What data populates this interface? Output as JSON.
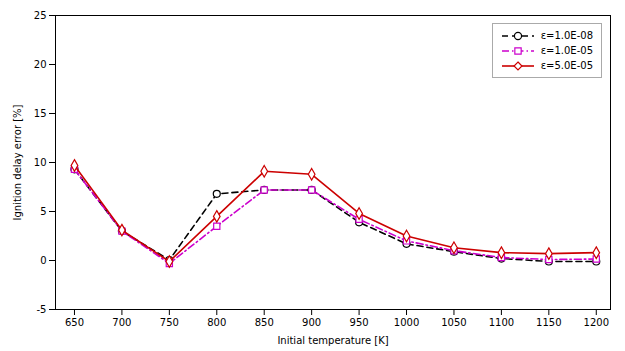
{
  "chart_data": {
    "type": "line",
    "x": [
      650,
      700,
      750,
      800,
      850,
      900,
      950,
      1000,
      1050,
      1100,
      1150,
      1200
    ],
    "series": [
      {
        "name": "ε=1.0E-08",
        "color": "#000000",
        "line_style": "dashed",
        "marker": "circle",
        "values": [
          9.3,
          3.0,
          0.05,
          6.8,
          7.2,
          7.2,
          3.9,
          1.7,
          0.9,
          0.2,
          -0.1,
          -0.1
        ]
      },
      {
        "name": "ε=1.0E-05",
        "color": "#cc00cc",
        "line_style": "dashdot",
        "marker": "square",
        "values": [
          9.3,
          3.0,
          -0.3,
          3.5,
          7.2,
          7.2,
          4.2,
          2.0,
          1.0,
          0.3,
          0.1,
          0.15
        ]
      },
      {
        "name": "ε=5.0E-05",
        "color": "#cc0000",
        "line_style": "solid",
        "marker": "diamond",
        "values": [
          9.7,
          3.1,
          -0.1,
          4.5,
          9.1,
          8.8,
          4.8,
          2.5,
          1.3,
          0.8,
          0.7,
          0.8
        ]
      }
    ],
    "xlabel": "Initial temperature [K]",
    "ylabel": "Ignition delay error [%]",
    "xlim": [
      630,
      1215
    ],
    "ylim": [
      -5,
      25
    ],
    "xticks": [
      650,
      700,
      750,
      800,
      850,
      900,
      950,
      1000,
      1050,
      1100,
      1150,
      1200
    ],
    "yticks": [
      -5,
      0,
      5,
      10,
      15,
      20,
      25
    ],
    "grid": false,
    "legend": "upper right"
  }
}
